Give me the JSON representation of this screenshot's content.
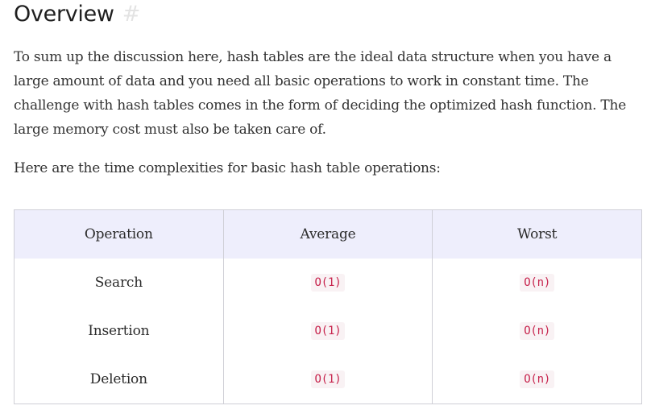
{
  "section": {
    "title": "Overview",
    "anchor_symbol": "#"
  },
  "paragraphs": {
    "summary": "To sum up the discussion here, hash tables are the ideal data structure when you have a large amount of data and you need all basic operations to work in constant time. The challenge with hash tables comes in the form of deciding the optimized hash function. The large memory cost must also be taken care of.",
    "intro": "Here are the time complexities for basic hash table operations:"
  },
  "table": {
    "headers": [
      "Operation",
      "Average",
      "Worst"
    ],
    "rows": [
      [
        "Search",
        "O(1)",
        "O(n)"
      ],
      [
        "Insertion",
        "O(1)",
        "O(n)"
      ],
      [
        "Deletion",
        "O(1)",
        "O(n)"
      ]
    ]
  },
  "colors": {
    "header_background": "#eeeefc",
    "code_text": "#c7254e",
    "code_background": "#f9f2f4",
    "border": "#cfcfd6"
  }
}
